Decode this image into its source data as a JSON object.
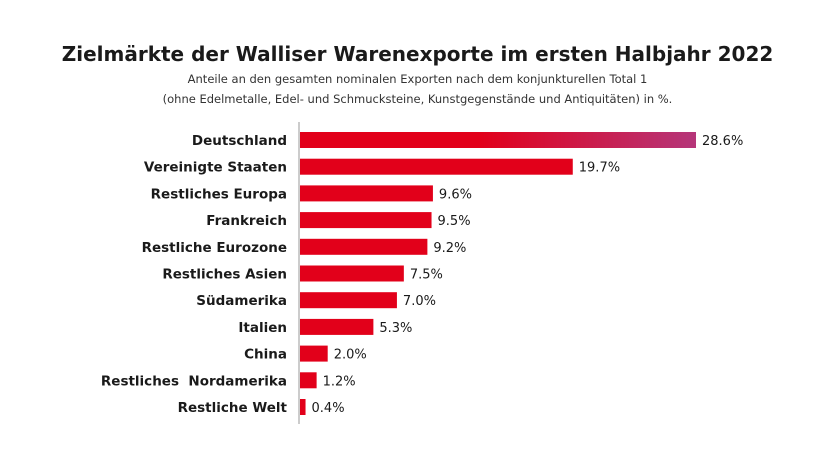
{
  "chart_data": {
    "type": "bar",
    "orientation": "horizontal",
    "title": "Zielmärkte der Walliser Warenexporte im ersten Halbjahr 2022",
    "subtitle_line1": "Anteile an den gesamten nominalen Exporten nach dem konjunkturellen Total 1",
    "subtitle_line2": "(ohne Edelmetalle, Edel- und Schmucksteine, Kunstgegenstände und Antiquitäten) in %.",
    "categories": [
      "Deutschland",
      "Vereinigte Staaten",
      "Restliches Europa",
      "Frankreich",
      "Restliche Eurozone",
      "Restliches Asien",
      "Südamerika",
      "Italien",
      "China",
      "Restliches  Nordamerika",
      "Restliche Welt"
    ],
    "values": [
      28.6,
      19.7,
      9.6,
      9.5,
      9.2,
      7.5,
      7.0,
      5.3,
      2.0,
      1.2,
      0.4
    ],
    "value_labels": [
      "28.6%",
      "19.7%",
      "9.6%",
      "9.5%",
      "9.2%",
      "7.5%",
      "7.0%",
      "5.3%",
      "2.0%",
      "1.2%",
      "0.4%"
    ],
    "xlim": [
      0,
      28.6
    ],
    "grid": false,
    "colors": {
      "bar": "#e2001a",
      "gradient_end": "#b5367a",
      "axis": "#999999"
    }
  }
}
